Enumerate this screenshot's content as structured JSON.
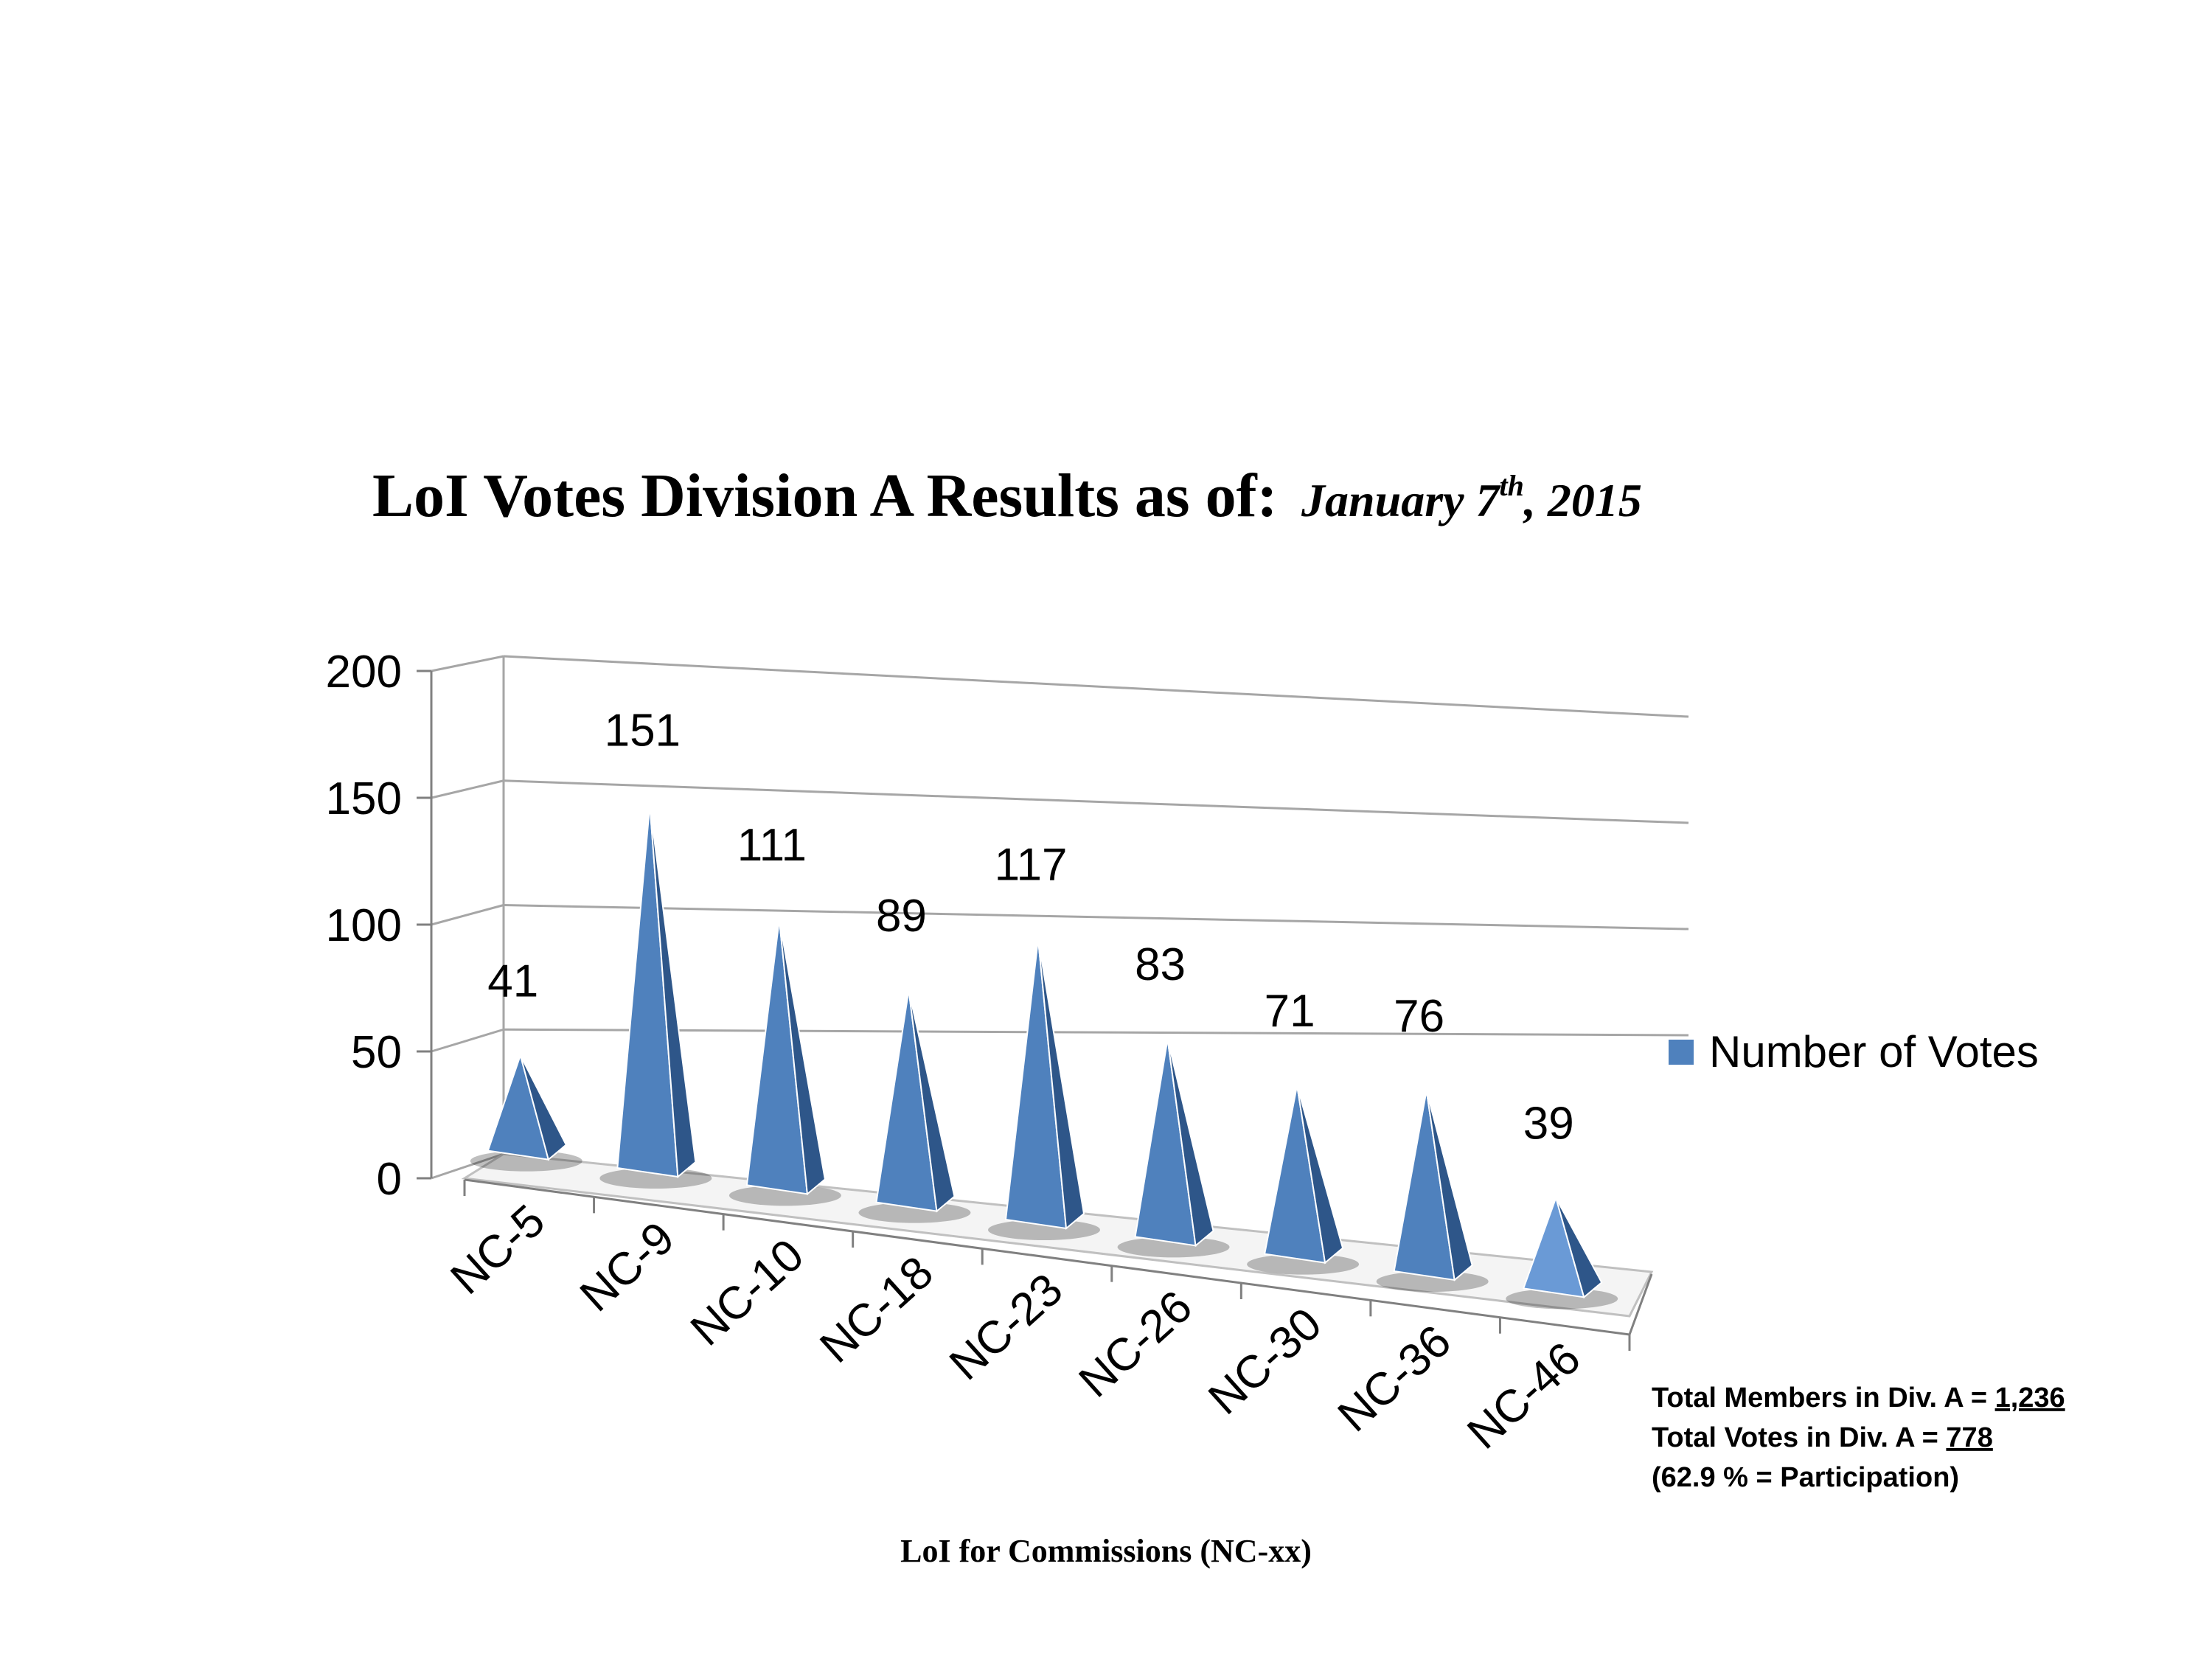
{
  "chart_data": {
    "type": "bar",
    "style": "3d-pyramid",
    "title": "LoI Votes Division A Results as of:",
    "title_date": {
      "prefix": "January 7",
      "superscript": "th",
      "suffix": ", 2015"
    },
    "categories": [
      "NC-5",
      "NC-9",
      "NC-10",
      "NC-18",
      "NC-23",
      "NC-26",
      "NC-30",
      "NC-36",
      "NC-46"
    ],
    "series": [
      {
        "name": "Number of Votes",
        "values": [
          41,
          151,
          111,
          89,
          117,
          83,
          71,
          76,
          39
        ],
        "color": "#4f81bd"
      }
    ],
    "data_labels": [
      "41",
      "151",
      "111",
      "89",
      "117",
      "83",
      "71",
      "76",
      "39"
    ],
    "xlabel": "LoI for Commissions (NC-xx)",
    "ylabel": "",
    "ylim": [
      0,
      200
    ],
    "yticks": [
      "0",
      "50",
      "100",
      "150",
      "200"
    ],
    "grid": true,
    "legend": {
      "position": "right",
      "entries": [
        "Number of Votes"
      ]
    },
    "annotations": {
      "members_label": "Total Members in Div. A = ",
      "members_value": "1,236",
      "votes_label": "Total Votes in Div. A = ",
      "votes_value": "778",
      "participation": "(62.9 % = Participation)"
    }
  },
  "colors": {
    "pyramid_front": "#4f81bd",
    "pyramid_side": "#2e5689",
    "pyramid_light": "#6a9ad6",
    "grid": "#a6a6a6",
    "axis": "#808080"
  }
}
